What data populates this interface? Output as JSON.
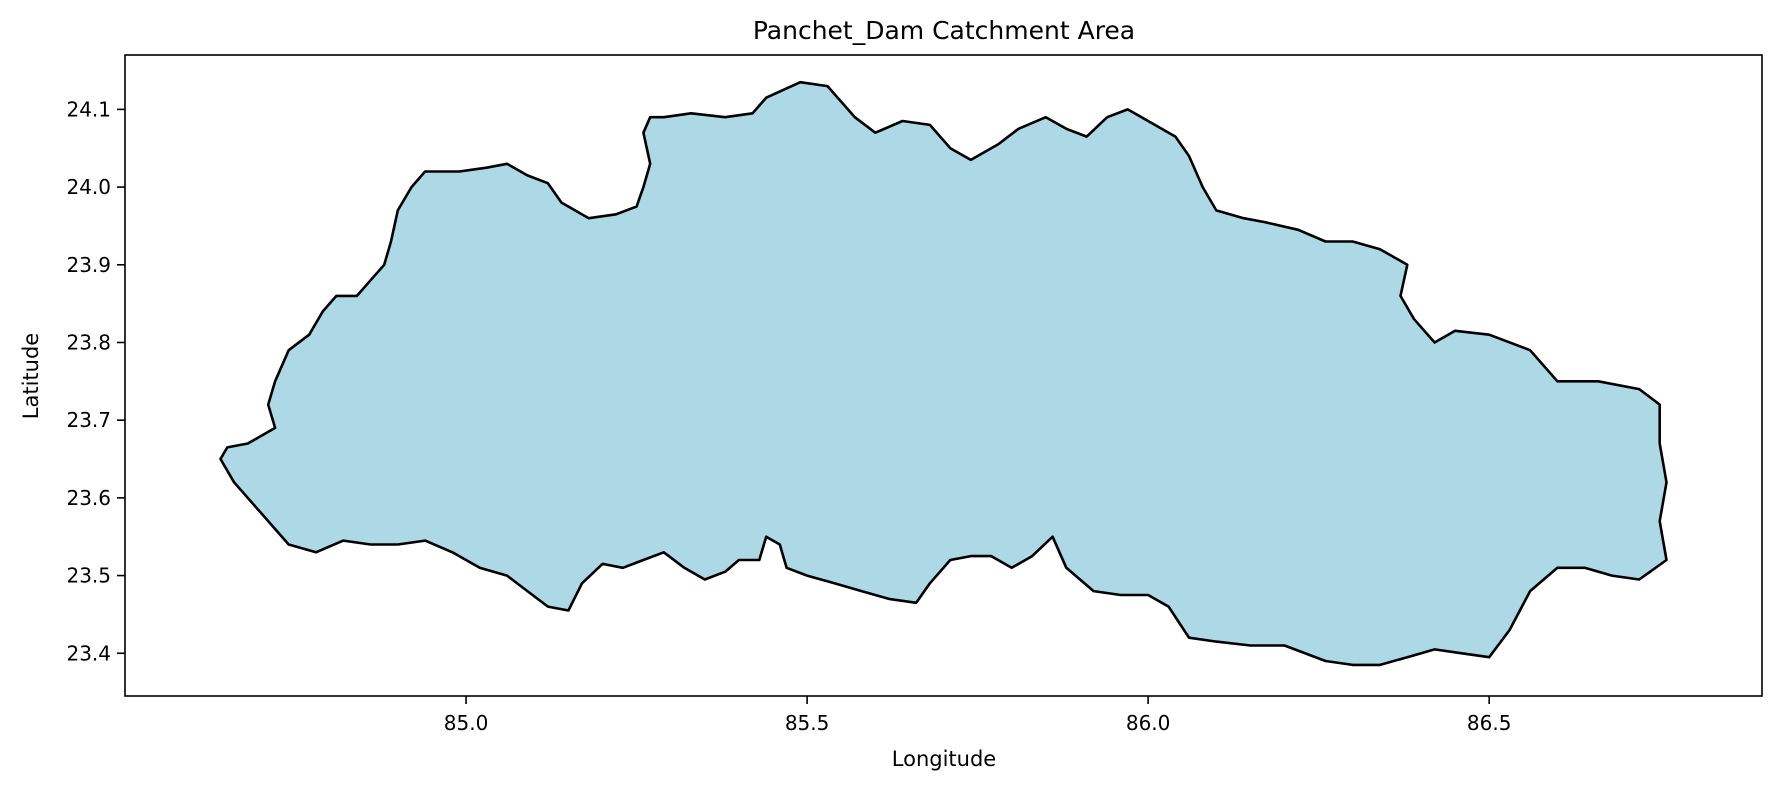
{
  "chart_data": {
    "type": "map-polygon",
    "title": "Panchet_Dam Catchment Area",
    "xlabel": "Longitude",
    "ylabel": "Latitude",
    "xlim": [
      84.5,
      86.9
    ],
    "ylim": [
      23.345,
      24.17
    ],
    "x_ticks": [
      85.0,
      85.5,
      86.0,
      86.5
    ],
    "x_tick_labels": [
      "85.0",
      "85.5",
      "86.0",
      "86.5"
    ],
    "y_ticks": [
      23.4,
      23.5,
      23.6,
      23.7,
      23.8,
      23.9,
      24.0,
      24.1
    ],
    "y_tick_labels": [
      "23.4",
      "23.5",
      "23.6",
      "23.7",
      "23.8",
      "23.9",
      "24.0",
      "24.1"
    ],
    "grid": false,
    "fill_color": "#add8e6",
    "edge_color": "#000000",
    "boundary": [
      [
        84.64,
        23.65
      ],
      [
        84.66,
        23.62
      ],
      [
        84.7,
        23.58
      ],
      [
        84.74,
        23.54
      ],
      [
        84.78,
        23.53
      ],
      [
        84.82,
        23.545
      ],
      [
        84.86,
        23.54
      ],
      [
        84.9,
        23.54
      ],
      [
        84.94,
        23.545
      ],
      [
        84.98,
        23.53
      ],
      [
        85.02,
        23.51
      ],
      [
        85.06,
        23.5
      ],
      [
        85.09,
        23.48
      ],
      [
        85.12,
        23.46
      ],
      [
        85.15,
        23.455
      ],
      [
        85.17,
        23.49
      ],
      [
        85.2,
        23.515
      ],
      [
        85.23,
        23.51
      ],
      [
        85.26,
        23.52
      ],
      [
        85.29,
        23.53
      ],
      [
        85.32,
        23.51
      ],
      [
        85.35,
        23.495
      ],
      [
        85.38,
        23.505
      ],
      [
        85.4,
        23.52
      ],
      [
        85.43,
        23.52
      ],
      [
        85.44,
        23.55
      ],
      [
        85.46,
        23.54
      ],
      [
        85.47,
        23.51
      ],
      [
        85.5,
        23.5
      ],
      [
        85.54,
        23.49
      ],
      [
        85.58,
        23.48
      ],
      [
        85.62,
        23.47
      ],
      [
        85.66,
        23.465
      ],
      [
        85.68,
        23.49
      ],
      [
        85.71,
        23.52
      ],
      [
        85.74,
        23.525
      ],
      [
        85.77,
        23.525
      ],
      [
        85.8,
        23.51
      ],
      [
        85.83,
        23.525
      ],
      [
        85.86,
        23.55
      ],
      [
        85.88,
        23.51
      ],
      [
        85.92,
        23.48
      ],
      [
        85.96,
        23.475
      ],
      [
        86.0,
        23.475
      ],
      [
        86.03,
        23.46
      ],
      [
        86.06,
        23.42
      ],
      [
        86.1,
        23.415
      ],
      [
        86.15,
        23.41
      ],
      [
        86.2,
        23.41
      ],
      [
        86.26,
        23.39
      ],
      [
        86.3,
        23.385
      ],
      [
        86.34,
        23.385
      ],
      [
        86.38,
        23.395
      ],
      [
        86.42,
        23.405
      ],
      [
        86.46,
        23.4
      ],
      [
        86.5,
        23.395
      ],
      [
        86.53,
        23.43
      ],
      [
        86.56,
        23.48
      ],
      [
        86.6,
        23.51
      ],
      [
        86.64,
        23.51
      ],
      [
        86.68,
        23.5
      ],
      [
        86.72,
        23.495
      ],
      [
        86.76,
        23.52
      ],
      [
        86.75,
        23.57
      ],
      [
        86.76,
        23.62
      ],
      [
        86.75,
        23.67
      ],
      [
        86.75,
        23.72
      ],
      [
        86.72,
        23.74
      ],
      [
        86.66,
        23.75
      ],
      [
        86.6,
        23.75
      ],
      [
        86.56,
        23.79
      ],
      [
        86.5,
        23.81
      ],
      [
        86.45,
        23.815
      ],
      [
        86.42,
        23.8
      ],
      [
        86.39,
        23.83
      ],
      [
        86.37,
        23.86
      ],
      [
        86.38,
        23.9
      ],
      [
        86.34,
        23.92
      ],
      [
        86.3,
        23.93
      ],
      [
        86.26,
        23.93
      ],
      [
        86.22,
        23.945
      ],
      [
        86.17,
        23.955
      ],
      [
        86.14,
        23.96
      ],
      [
        86.1,
        23.97
      ],
      [
        86.08,
        24.0
      ],
      [
        86.06,
        24.04
      ],
      [
        86.04,
        24.065
      ],
      [
        86.0,
        24.085
      ],
      [
        85.97,
        24.1
      ],
      [
        85.94,
        24.09
      ],
      [
        85.91,
        24.065
      ],
      [
        85.88,
        24.075
      ],
      [
        85.85,
        24.09
      ],
      [
        85.81,
        24.075
      ],
      [
        85.78,
        24.055
      ],
      [
        85.74,
        24.035
      ],
      [
        85.71,
        24.05
      ],
      [
        85.68,
        24.08
      ],
      [
        85.64,
        24.085
      ],
      [
        85.6,
        24.07
      ],
      [
        85.57,
        24.09
      ],
      [
        85.53,
        24.13
      ],
      [
        85.49,
        24.135
      ],
      [
        85.44,
        24.115
      ],
      [
        85.42,
        24.095
      ],
      [
        85.38,
        24.09
      ],
      [
        85.33,
        24.095
      ],
      [
        85.29,
        24.09
      ],
      [
        85.27,
        24.09
      ],
      [
        85.26,
        24.07
      ],
      [
        85.27,
        24.03
      ],
      [
        85.26,
        24.0
      ],
      [
        85.25,
        23.975
      ],
      [
        85.22,
        23.965
      ],
      [
        85.18,
        23.96
      ],
      [
        85.14,
        23.98
      ],
      [
        85.12,
        24.005
      ],
      [
        85.09,
        24.015
      ],
      [
        85.06,
        24.03
      ],
      [
        85.03,
        24.025
      ],
      [
        84.99,
        24.02
      ],
      [
        84.94,
        24.02
      ],
      [
        84.92,
        24.0
      ],
      [
        84.9,
        23.97
      ],
      [
        84.89,
        23.93
      ],
      [
        84.88,
        23.9
      ],
      [
        84.86,
        23.88
      ],
      [
        84.84,
        23.86
      ],
      [
        84.81,
        23.86
      ],
      [
        84.79,
        23.84
      ],
      [
        84.77,
        23.81
      ],
      [
        84.74,
        23.79
      ],
      [
        84.72,
        23.75
      ],
      [
        84.71,
        23.72
      ],
      [
        84.72,
        23.69
      ],
      [
        84.68,
        23.67
      ],
      [
        84.65,
        23.665
      ]
    ]
  }
}
